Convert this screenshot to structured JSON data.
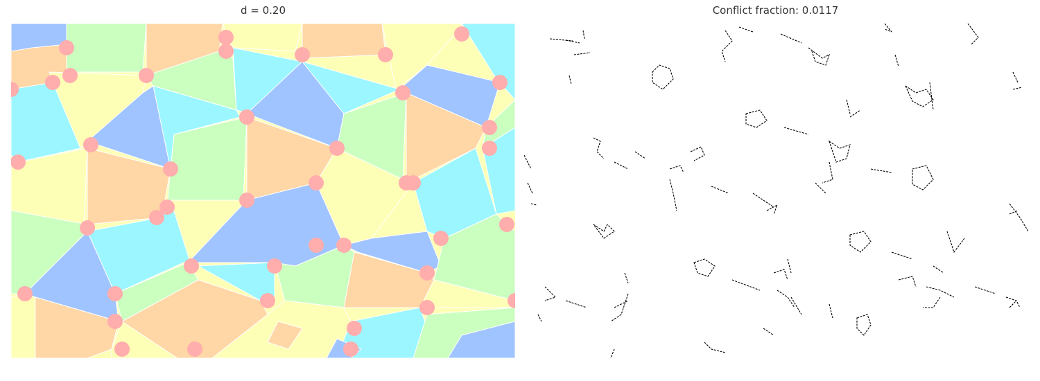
{
  "left_panel": {
    "title": "d = 0.20",
    "palette": {
      "blue": "#a0c4ff",
      "cyan": "#9bf6ff",
      "green": "#caffbf",
      "yellow": "#fdffb6",
      "orange": "#ffd6a5",
      "conflict": "#ffadad"
    }
  },
  "right_panel": {
    "title": "Conflict fraction: 0.0117",
    "line_color": "#000000"
  }
}
